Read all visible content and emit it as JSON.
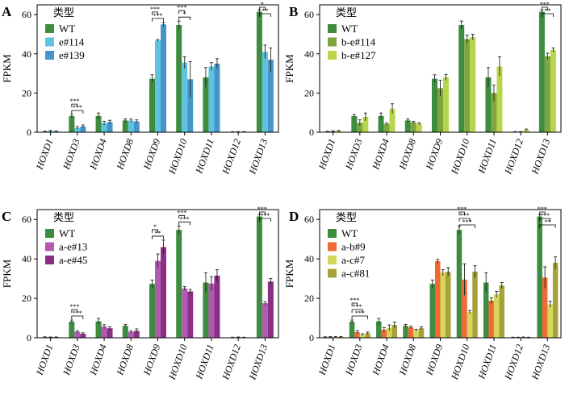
{
  "colors": {
    "WT": "#3d8c40",
    "e#114": "#5fc2df",
    "e#139": "#4596c8",
    "b-e#114": "#7ea63c",
    "b-e#127": "#b8d64c",
    "a-e#13": "#b05bb0",
    "a-e#45": "#8a2f84",
    "a-b#9": "#f06a35",
    "a-c#7": "#d5d75a",
    "a-c#81": "#a6a13a"
  },
  "chart_data": [
    {
      "panel": "A",
      "type": "bar",
      "ylabel": "FPKM",
      "ylim": [
        0,
        65
      ],
      "yticks": [
        0,
        20,
        40,
        60
      ],
      "legend_title": "类型",
      "categories": [
        "HOXD1",
        "HOXD3",
        "HOXD4",
        "HOXD8",
        "HOXD9",
        "HOXD10",
        "HOXD11",
        "HOXD12",
        "HOXD13"
      ],
      "series": [
        {
          "name": "WT",
          "values": [
            0.3,
            8.2,
            8.3,
            6.0,
            27.3,
            54.7,
            28.0,
            0.2,
            61.5
          ],
          "errors": [
            0.2,
            0.8,
            1.5,
            0.8,
            2.0,
            2.0,
            5.0,
            0.1,
            1.0
          ]
        },
        {
          "name": "e#114",
          "values": [
            0.6,
            2.2,
            4.6,
            5.9,
            46.8,
            35.5,
            33.5,
            0.2,
            41.0
          ],
          "errors": [
            0.3,
            0.7,
            1.0,
            0.8,
            0.5,
            3.0,
            2.0,
            0.1,
            3.5
          ]
        },
        {
          "name": "e#139",
          "values": [
            0.4,
            2.9,
            5.1,
            5.5,
            55.0,
            27.0,
            35.0,
            0.2,
            37.0
          ],
          "errors": [
            0.2,
            0.8,
            1.0,
            0.8,
            1.0,
            9.0,
            2.5,
            0.1,
            6.0
          ]
        }
      ],
      "significance": [
        {
          "category": "HOXD3",
          "labels": [
            "***",
            "***"
          ]
        },
        {
          "category": "HOXD9",
          "labels": [
            "***",
            "***"
          ]
        },
        {
          "category": "HOXD10",
          "labels": [
            "***",
            "*"
          ]
        },
        {
          "category": "HOXD13",
          "labels": [
            "*",
            "**"
          ]
        }
      ]
    },
    {
      "panel": "B",
      "type": "bar",
      "ylabel": "FPKM",
      "ylim": [
        0,
        65
      ],
      "yticks": [
        0,
        20,
        40,
        60
      ],
      "legend_title": "类型",
      "categories": [
        "HOXD1",
        "HOXD3",
        "HOXD4",
        "HOXD8",
        "HOXD9",
        "HOXD10",
        "HOXD11",
        "HOXD12",
        "HOXD13"
      ],
      "series": [
        {
          "name": "WT",
          "values": [
            0.3,
            8.2,
            8.3,
            6.0,
            27.3,
            54.7,
            28.0,
            0.2,
            61.5
          ],
          "errors": [
            0.2,
            0.8,
            1.5,
            0.8,
            2.0,
            2.0,
            5.0,
            0.1,
            1.0
          ]
        },
        {
          "name": "b-e#114",
          "values": [
            0.5,
            4.8,
            4.2,
            5.0,
            22.5,
            47.5,
            20.0,
            0.2,
            38.8
          ],
          "errors": [
            0.2,
            1.5,
            0.5,
            0.6,
            4.0,
            2.0,
            4.0,
            0.1,
            1.5
          ]
        },
        {
          "name": "b-e#127",
          "values": [
            0.6,
            7.8,
            12.0,
            4.3,
            28.0,
            48.5,
            33.5,
            1.2,
            42.0
          ],
          "errors": [
            0.3,
            2.0,
            2.5,
            0.5,
            1.5,
            1.5,
            5.0,
            0.4,
            1.0
          ]
        }
      ],
      "significance": [
        {
          "category": "HOXD13",
          "labels": [
            "***",
            "**"
          ]
        }
      ]
    },
    {
      "panel": "C",
      "type": "bar",
      "ylabel": "FPKM",
      "ylim": [
        0,
        65
      ],
      "yticks": [
        0,
        20,
        40,
        60
      ],
      "legend_title": "类型",
      "categories": [
        "HOXD1",
        "HOXD3",
        "HOXD4",
        "HOXD8",
        "HOXD9",
        "HOXD10",
        "HOXD11",
        "HOXD12",
        "HOXD13"
      ],
      "series": [
        {
          "name": "WT",
          "values": [
            0.3,
            8.2,
            8.3,
            6.0,
            27.3,
            54.7,
            28.0,
            0.2,
            61.5
          ],
          "errors": [
            0.2,
            0.8,
            1.5,
            0.8,
            2.0,
            2.0,
            5.0,
            0.1,
            1.0
          ]
        },
        {
          "name": "a-e#13",
          "values": [
            0.3,
            3.0,
            5.6,
            3.0,
            39.0,
            25.0,
            27.5,
            0.3,
            17.5
          ],
          "errors": [
            0.1,
            0.5,
            1.0,
            0.5,
            3.5,
            1.0,
            3.5,
            0.1,
            0.8
          ]
        },
        {
          "name": "a-e#45",
          "values": [
            0.3,
            2.0,
            4.8,
            3.5,
            46.0,
            23.5,
            31.5,
            0.2,
            28.5
          ],
          "errors": [
            0.1,
            0.5,
            0.8,
            1.0,
            3.5,
            1.0,
            3.0,
            0.1,
            1.5
          ]
        }
      ],
      "significance": [
        {
          "category": "HOXD3",
          "labels": [
            "***",
            "***"
          ]
        },
        {
          "category": "HOXD9",
          "labels": [
            "*",
            "**"
          ]
        },
        {
          "category": "HOXD10",
          "labels": [
            "***",
            "***"
          ]
        },
        {
          "category": "HOXD13",
          "labels": [
            "***",
            "***"
          ]
        }
      ]
    },
    {
      "panel": "D",
      "type": "bar",
      "ylabel": "FPKM",
      "ylim": [
        0,
        65
      ],
      "yticks": [
        0,
        20,
        40,
        60
      ],
      "legend_title": "类型",
      "categories": [
        "HOXD1",
        "HOXD3",
        "HOXD4",
        "HOXD8",
        "HOXD9",
        "HOXD10",
        "HOXD11",
        "HOXD12",
        "HOXD13"
      ],
      "series": [
        {
          "name": "WT",
          "values": [
            0.3,
            8.2,
            8.3,
            6.0,
            27.3,
            54.7,
            28.0,
            0.2,
            61.5
          ],
          "errors": [
            0.2,
            0.8,
            1.5,
            0.8,
            2.0,
            2.0,
            5.0,
            0.1,
            1.0
          ]
        },
        {
          "name": "a-b#9",
          "values": [
            0.4,
            2.8,
            4.0,
            5.3,
            38.8,
            29.5,
            18.8,
            0.2,
            30.5
          ],
          "errors": [
            0.2,
            0.8,
            1.2,
            0.6,
            1.0,
            8.0,
            1.5,
            0.1,
            5.5
          ]
        },
        {
          "name": "a-c#7",
          "values": [
            0.4,
            1.5,
            5.0,
            3.8,
            33.0,
            13.0,
            22.0,
            0.3,
            17.0
          ],
          "errors": [
            0.2,
            0.5,
            1.5,
            0.5,
            1.5,
            0.8,
            1.5,
            0.1,
            1.5
          ]
        },
        {
          "name": "a-c#81",
          "values": [
            0.4,
            2.3,
            6.5,
            4.8,
            33.5,
            33.5,
            26.5,
            0.2,
            38.0
          ],
          "errors": [
            0.2,
            0.6,
            1.5,
            0.8,
            2.0,
            3.0,
            1.5,
            0.1,
            3.0
          ]
        }
      ],
      "significance": [
        {
          "category": "HOXD3",
          "labels": [
            "***",
            "***",
            "***"
          ]
        },
        {
          "category": "HOXD10",
          "labels": [
            "***",
            "***",
            "***"
          ]
        },
        {
          "category": "HOXD13",
          "labels": [
            "***",
            "***",
            "**"
          ]
        }
      ]
    }
  ]
}
